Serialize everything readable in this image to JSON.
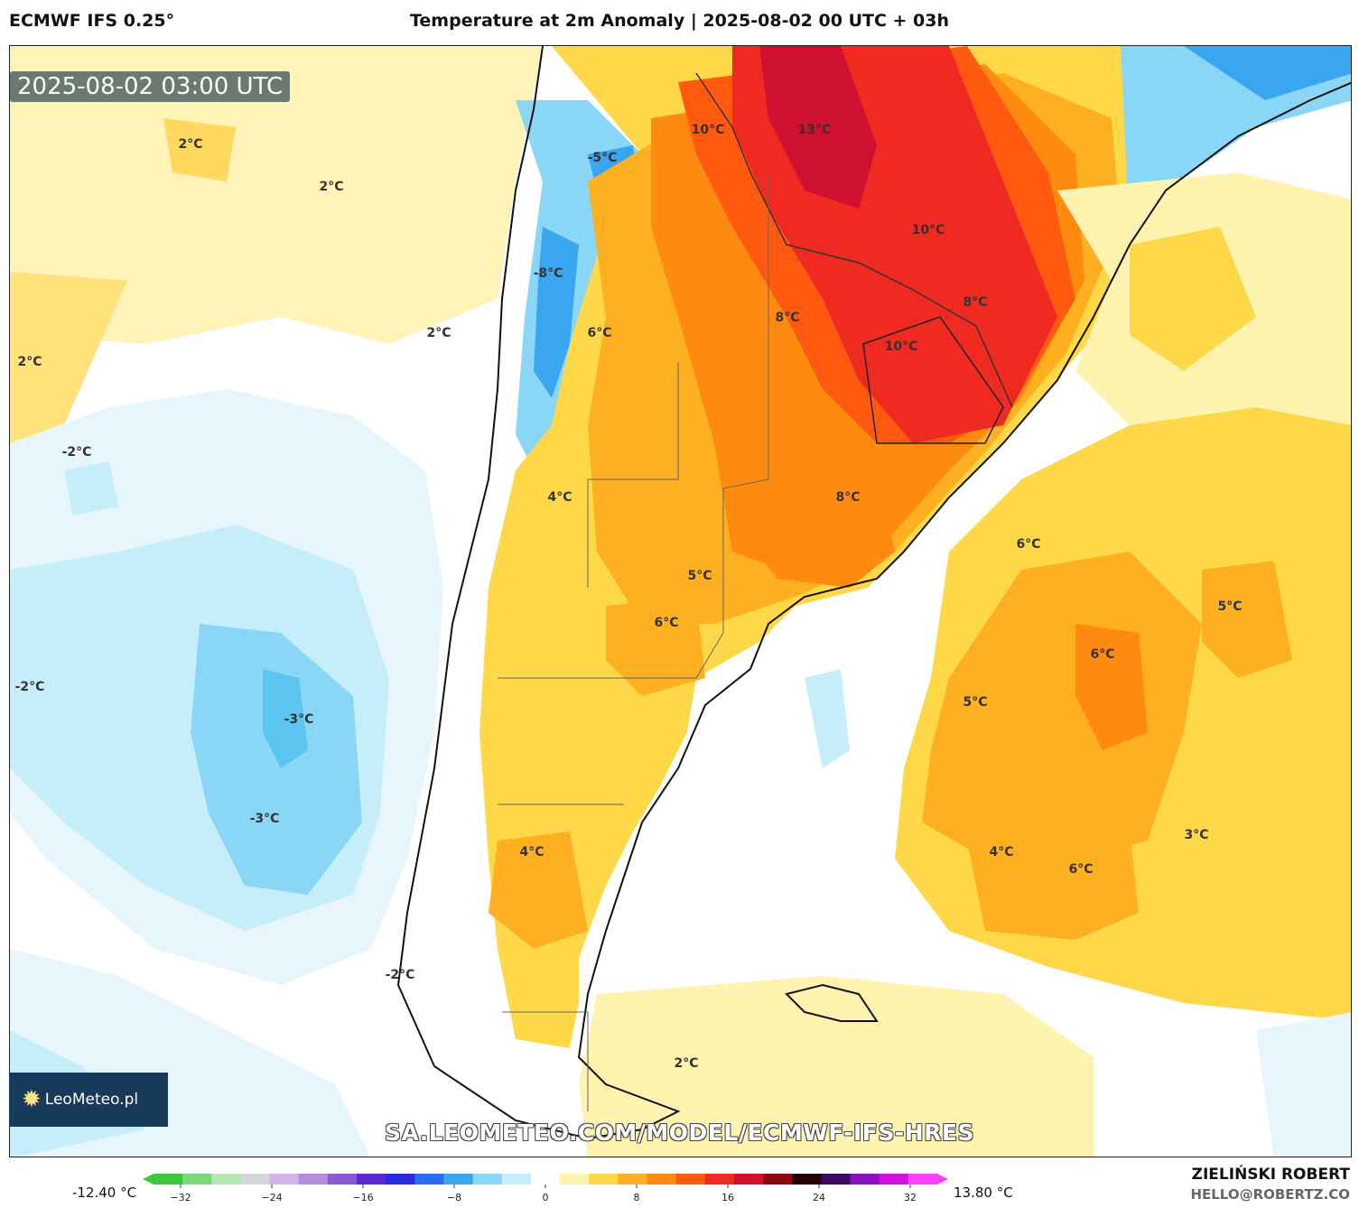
{
  "header": {
    "model": "ECMWF IFS 0.25°",
    "title": "Temperature at 2m Anomaly | 2025-08-02 00 UTC + 03h"
  },
  "map": {
    "valid_time": "2025-08-02 03:00 UTC",
    "watermark_url": "SA.LEOMETEO.COM/MODEL/ECMWF-IFS-HRES",
    "logo_text": "LeoMeteo.pl",
    "isotherm_labels": [
      "2°C",
      "2°C",
      "2°C",
      "2°C",
      "-2°C",
      "-2°C",
      "-3°C",
      "-3°C",
      "-2°C",
      "10°C",
      "13°C",
      "10°C",
      "8°C",
      "8°C",
      "10°C",
      "6°C",
      "-5°C",
      "-8°C",
      "4°C",
      "8°C",
      "5°C",
      "6°C",
      "6°C",
      "5°C",
      "6°C",
      "5°C",
      "4°C",
      "4°C",
      "6°C",
      "3°C",
      "2°C"
    ]
  },
  "colorbar": {
    "min_label": "-12.40 °C",
    "max_label": "13.80 °C",
    "ticks": [
      "−32",
      "−24",
      "−16",
      "−8",
      "0",
      "8",
      "16",
      "24",
      "32"
    ],
    "colors": [
      "#3ec83e",
      "#7ad87a",
      "#b6e6b6",
      "#d6d6d6",
      "#d2b4e6",
      "#b48ce0",
      "#8a5ad6",
      "#5a2ad0",
      "#2a2ae0",
      "#2a6ef0",
      "#3aa6f0",
      "#8ad6f6",
      "#c6eefa",
      "#ffffff",
      "#fff3b0",
      "#ffd84a",
      "#ffb020",
      "#ff8a10",
      "#ff5a10",
      "#f02a20",
      "#d01030",
      "#8a0a10",
      "#200000",
      "#3a0a6a",
      "#8a10c0",
      "#d010e0",
      "#ff40ff"
    ]
  },
  "credits": {
    "author": "ZIELIŃSKI ROBERT",
    "email": "HELLO@ROBERTZ.CO"
  }
}
